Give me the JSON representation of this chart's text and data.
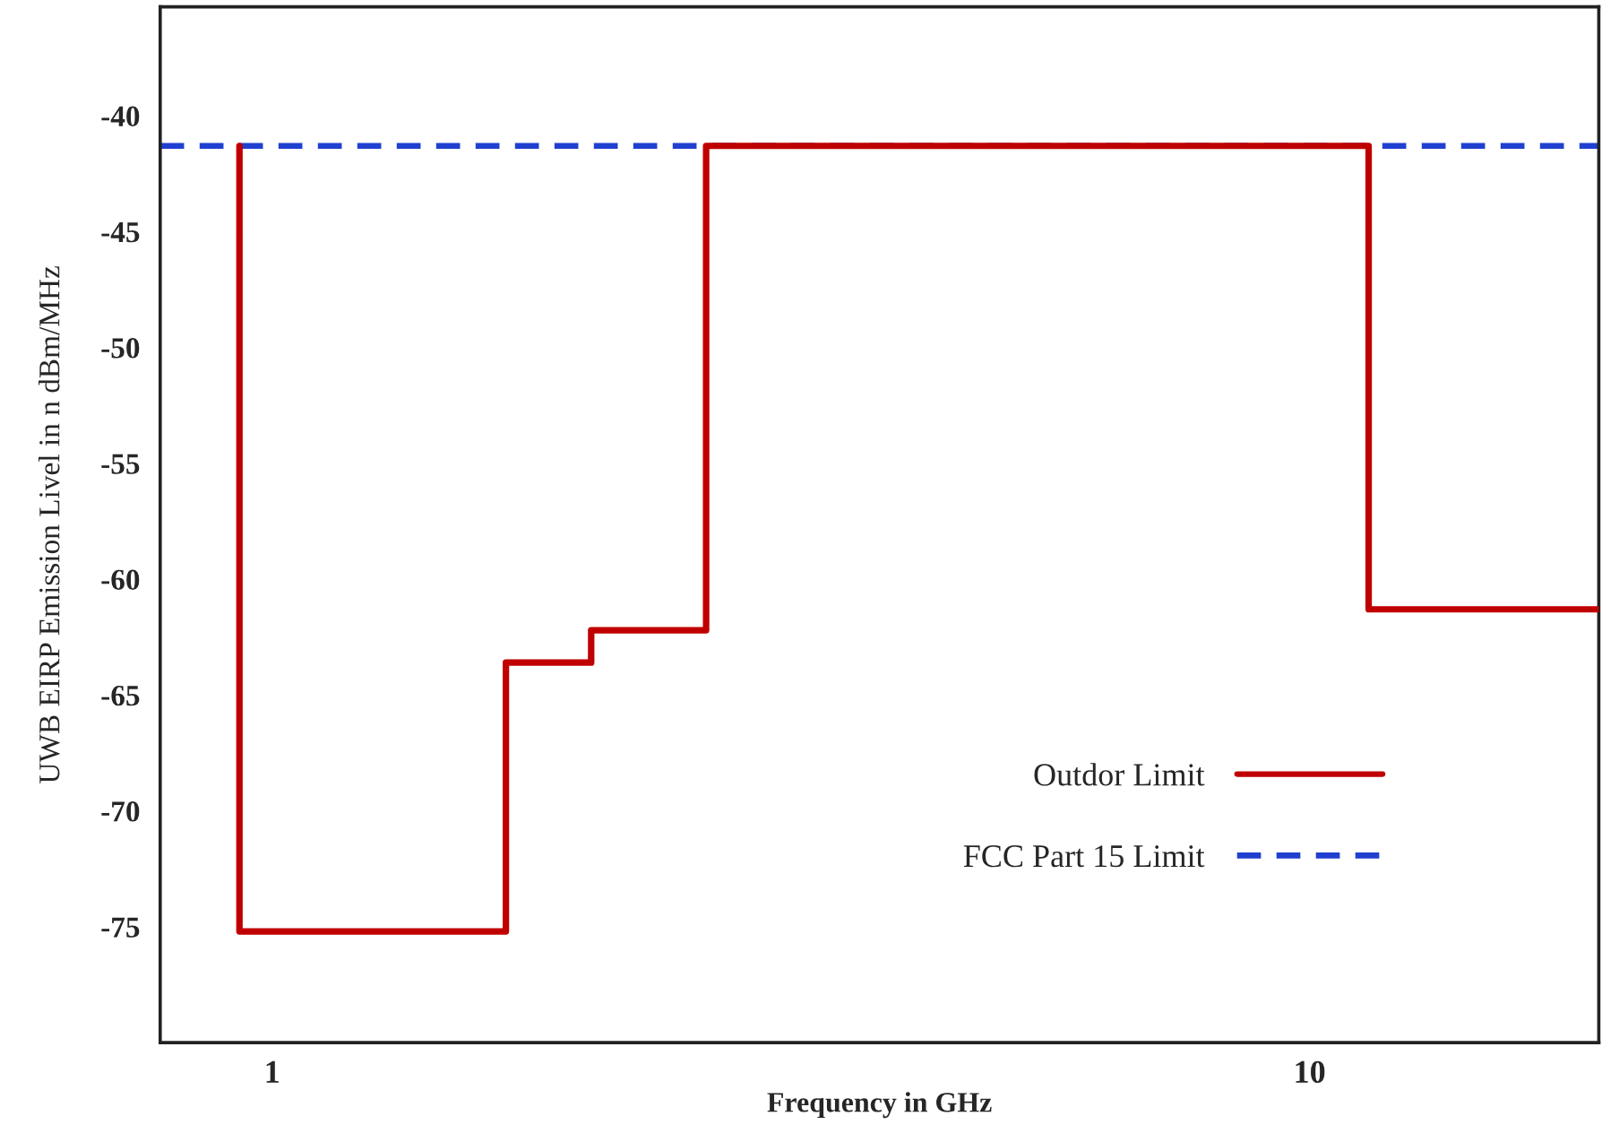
{
  "chart_data": {
    "type": "step",
    "xlabel": "Frequency in GHz",
    "ylabel": "UWB EIRP Emission Livel in n dBm/MHz",
    "log": "x",
    "xlim": [
      0.78,
      19
    ],
    "xticks": [
      1,
      10
    ],
    "ylim": [
      -80,
      -35.3
    ],
    "yticks": [
      -40,
      -45,
      -50,
      -55,
      -60,
      -65,
      -70,
      -75
    ],
    "series": [
      {
        "name": "Outdor Limit",
        "color": "#c00000",
        "x": [
          0.93,
          0.93,
          1.68,
          2.03,
          2.62,
          11.4,
          19
        ],
        "values": [
          -41.3,
          -75.2,
          -63.6,
          -62.2,
          -41.3,
          -61.3,
          -61.3
        ]
      }
    ],
    "ref_lines": [
      {
        "axis": "y",
        "value": -41.3,
        "label": "FCC Part 15 Limit",
        "color": "#2040d0",
        "line_style": "dashed"
      }
    ],
    "legend": "bottom right"
  }
}
